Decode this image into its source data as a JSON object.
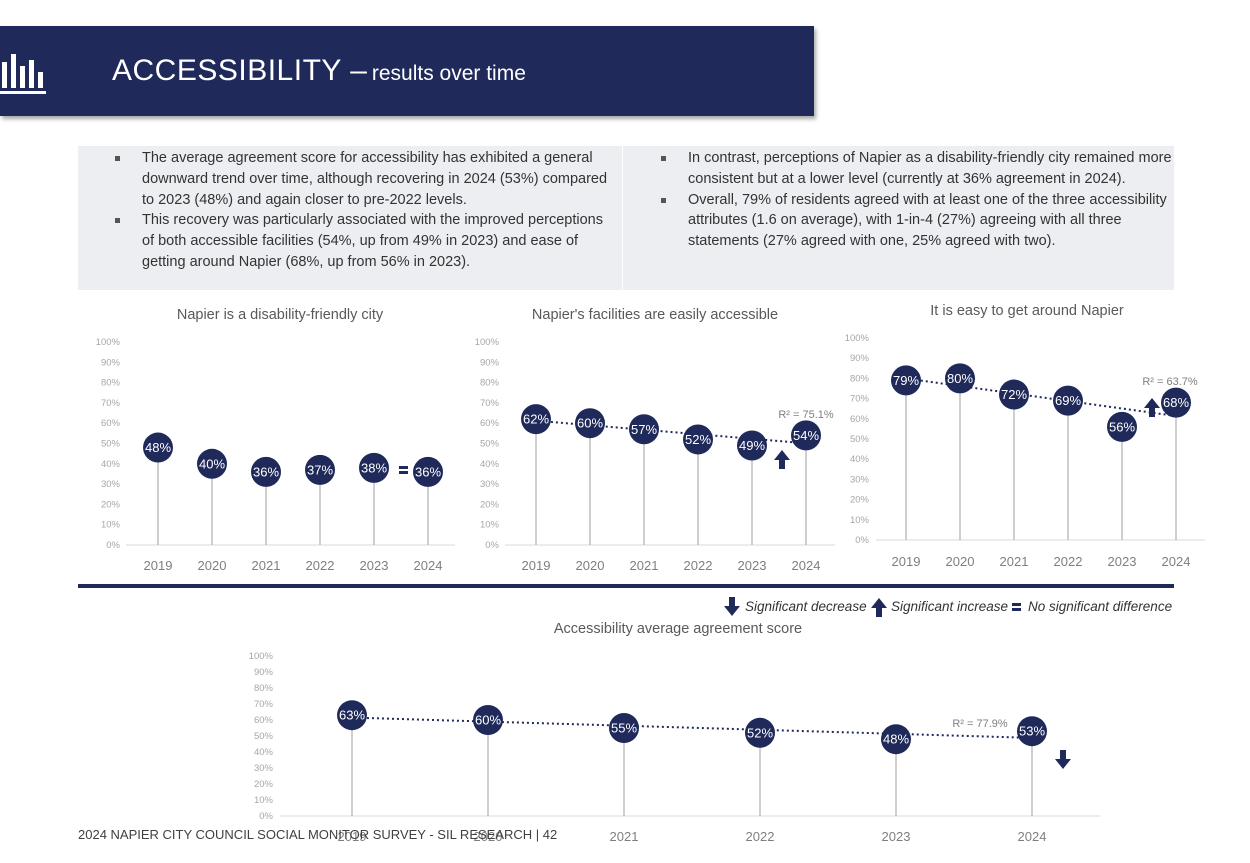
{
  "header": {
    "title": "ACCESSIBILITY –",
    "subtitle": "results over time",
    "icon": "bar-chart-icon"
  },
  "summary": {
    "left": [
      "The average agreement score for accessibility has exhibited a general downward trend over time, although recovering in 2024 (53%) compared to 2023 (48%) and again closer to pre-2022 levels.",
      "This recovery was particularly associated with the improved perceptions of both accessible facilities (54%, up from 49% in 2023) and ease of getting around Napier (68%, up from 56% in 2023)."
    ],
    "right": [
      "In contrast, perceptions of Napier as a disability-friendly city remained more consistent but at a lower level (currently at 36% agreement in 2024).",
      "Overall, 79% of residents agreed with at least one of the three accessibility attributes (1.6 on average), with 1-in-4 (27%) agreeing with all three statements (27% agreed with one, 25% agreed with two)."
    ]
  },
  "legend": {
    "decrease": "Significant decrease",
    "increase": "Significant increase",
    "no_diff": "No significant difference"
  },
  "footer": "2024 NAPIER CITY COUNCIL SOCIAL MONITOR SURVEY - SIL RESEARCH | 42",
  "colors": {
    "navy": "#1f2a5a",
    "stem": "#bfbfbf",
    "axis_text": "#a6a6a6",
    "trend": "#1f2a5a"
  },
  "chart_data": [
    {
      "type": "lollipop",
      "title": "Napier is a disability-friendly city",
      "categories": [
        "2019",
        "2020",
        "2021",
        "2022",
        "2023",
        "2024"
      ],
      "values": [
        48,
        40,
        36,
        37,
        38,
        36
      ],
      "labels": [
        "48%",
        "40%",
        "36%",
        "37%",
        "38%",
        "36%"
      ],
      "ylim": [
        0,
        100
      ],
      "yticks": [
        "0%",
        "10%",
        "20%",
        "30%",
        "40%",
        "50%",
        "60%",
        "70%",
        "80%",
        "90%",
        "100%"
      ],
      "trendline": false,
      "r2": "",
      "significance": "no_diff"
    },
    {
      "type": "lollipop",
      "title": "Napier's facilities are easily accessible",
      "categories": [
        "2019",
        "2020",
        "2021",
        "2022",
        "2023",
        "2024"
      ],
      "values": [
        62,
        60,
        57,
        52,
        49,
        54
      ],
      "labels": [
        "62%",
        "60%",
        "57%",
        "52%",
        "49%",
        "54%"
      ],
      "ylim": [
        0,
        100
      ],
      "yticks": [
        "0%",
        "10%",
        "20%",
        "30%",
        "40%",
        "50%",
        "60%",
        "70%",
        "80%",
        "90%",
        "100%"
      ],
      "trendline": true,
      "r2": "R² = 75.1%",
      "significance": "increase"
    },
    {
      "type": "lollipop",
      "title": "It is easy to get around Napier",
      "categories": [
        "2019",
        "2020",
        "2021",
        "2022",
        "2023",
        "2024"
      ],
      "values": [
        79,
        80,
        72,
        69,
        56,
        68
      ],
      "labels": [
        "79%",
        "80%",
        "72%",
        "69%",
        "56%",
        "68%"
      ],
      "ylim": [
        0,
        100
      ],
      "yticks": [
        "0%",
        "10%",
        "20%",
        "30%",
        "40%",
        "50%",
        "60%",
        "70%",
        "80%",
        "90%",
        "100%"
      ],
      "trendline": true,
      "r2": "R² = 63.7%",
      "significance": "increase"
    },
    {
      "type": "lollipop",
      "title": "Accessibility average agreement score",
      "categories": [
        "2019",
        "2020",
        "2021",
        "2022",
        "2023",
        "2024"
      ],
      "values": [
        63,
        60,
        55,
        52,
        48,
        53
      ],
      "labels": [
        "63%",
        "60%",
        "55%",
        "52%",
        "48%",
        "53%"
      ],
      "ylim": [
        0,
        100
      ],
      "yticks": [
        "0%",
        "10%",
        "20%",
        "30%",
        "40%",
        "50%",
        "60%",
        "70%",
        "80%",
        "90%",
        "100%"
      ],
      "trendline": true,
      "r2": "R² = 77.9%",
      "significance": "decrease"
    }
  ]
}
